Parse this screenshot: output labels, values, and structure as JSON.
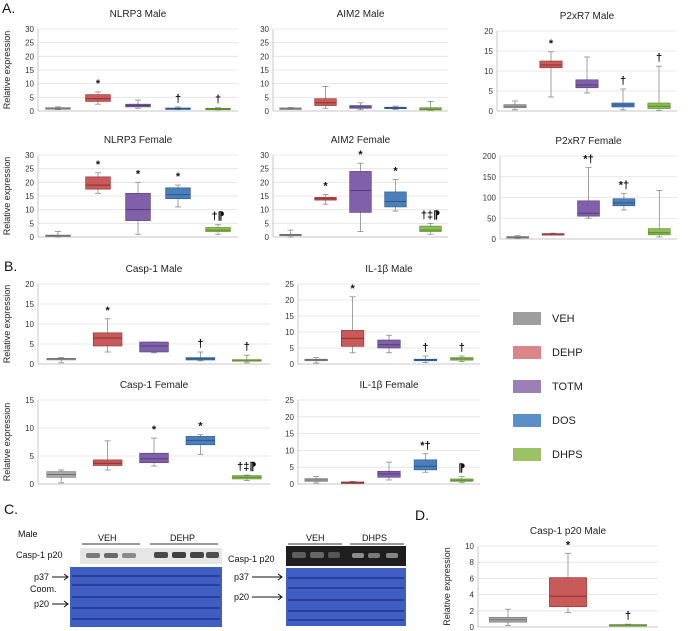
{
  "panel_labels": {
    "a": "A.",
    "b": "B.",
    "c": "C.",
    "d": "D."
  },
  "legend": [
    {
      "name": "VEH",
      "color": "#9e9e9e"
    },
    {
      "name": "DEHP",
      "color": "#d9858a"
    },
    {
      "name": "TOTM",
      "color": "#9b7fb7"
    },
    {
      "name": "DOS",
      "color": "#5b8fc7"
    },
    {
      "name": "DHPS",
      "color": "#9dc266"
    }
  ],
  "series_colors": {
    "VEH": {
      "fill": "#a8a8a8",
      "median": "#6f6f6f"
    },
    "DEHP": {
      "fill": "#c85a5a",
      "median": "#8e2e2e"
    },
    "TOTM": {
      "fill": "#8060a8",
      "median": "#553c7c"
    },
    "DOS": {
      "fill": "#4a7fbc",
      "median": "#2b5787"
    },
    "DHPS": {
      "fill": "#8bbd50",
      "median": "#5b8a28"
    }
  },
  "western": {
    "sex_label": "Male",
    "left": {
      "groups": [
        "VEH",
        "DEHP"
      ],
      "band_label": "Casp-1 p20",
      "markers": [
        "p37",
        "Coom.",
        "p20"
      ]
    },
    "right": {
      "groups": [
        "VEH",
        "DHPS"
      ],
      "band_label": "Casp-1 p20",
      "markers": [
        "p37",
        "p20"
      ]
    }
  },
  "chart_data": [
    {
      "type": "box",
      "title": "NLRP3 Male",
      "ylabel": "Relative expression",
      "ylim": [
        0,
        30
      ],
      "yticks": [
        0,
        5,
        10,
        15,
        20,
        25,
        30
      ],
      "categories": [
        "VEH",
        "DEHP",
        "TOTM",
        "DOS",
        "DHPS"
      ],
      "boxes": [
        [
          0.5,
          0.8,
          1,
          1.2,
          1.5
        ],
        [
          2.5,
          3.5,
          4.5,
          6,
          7
        ],
        [
          1,
          1.5,
          2,
          2.5,
          4
        ],
        [
          0.5,
          0.7,
          0.9,
          1.1,
          1.5
        ],
        [
          0.4,
          0.6,
          0.8,
          1,
          1.2
        ]
      ],
      "annotations": [
        "",
        "*",
        "",
        "†",
        "†"
      ]
    },
    {
      "type": "box",
      "title": "AIM2 Male",
      "ylabel": "",
      "ylim": [
        0,
        30
      ],
      "yticks": [
        0,
        5,
        10,
        15,
        20,
        25,
        30
      ],
      "categories": [
        "VEH",
        "DEHP",
        "TOTM",
        "DOS",
        "DHPS"
      ],
      "boxes": [
        [
          0.6,
          0.8,
          1,
          1.1,
          1.3
        ],
        [
          1,
          2,
          3,
          4.5,
          9
        ],
        [
          0.5,
          1,
          1.5,
          2,
          3
        ],
        [
          0.6,
          0.9,
          1.1,
          1.4,
          1.8
        ],
        [
          0.2,
          0.4,
          0.7,
          1.2,
          3.5
        ]
      ],
      "annotations": [
        "",
        "",
        "",
        "",
        ""
      ]
    },
    {
      "type": "box",
      "title": "P2xR7 Male",
      "ylabel": "",
      "ylim": [
        0,
        20
      ],
      "yticks": [
        0,
        5,
        10,
        15,
        20
      ],
      "categories": [
        "VEH",
        "DEHP",
        "TOTM",
        "DOS",
        "DHPS"
      ],
      "boxes": [
        [
          0.3,
          0.8,
          1.2,
          1.6,
          2.5
        ],
        [
          3.5,
          10.8,
          11.5,
          12.5,
          14.8
        ],
        [
          4.5,
          5.8,
          6.5,
          7.8,
          13.5
        ],
        [
          0.3,
          1,
          1.5,
          2,
          5.5
        ],
        [
          0.1,
          0.6,
          1.2,
          2,
          11.2
        ]
      ],
      "annotations": [
        "",
        "*",
        "",
        "†",
        "†"
      ]
    },
    {
      "type": "box",
      "title": "NLRP3 Female",
      "ylabel": "Relative expression",
      "ylim": [
        0,
        30
      ],
      "yticks": [
        0,
        5,
        10,
        15,
        20,
        25,
        30
      ],
      "categories": [
        "VEH",
        "DEHP",
        "TOTM",
        "DOS",
        "DHPS"
      ],
      "boxes": [
        [
          0,
          0.2,
          0.5,
          0.7,
          2
        ],
        [
          16,
          17.5,
          19,
          22,
          23.5
        ],
        [
          1,
          6,
          10,
          16,
          20
        ],
        [
          11,
          14,
          15.5,
          18,
          19
        ],
        [
          1,
          2,
          2.5,
          3.5,
          4.5
        ]
      ],
      "annotations": [
        "",
        "*",
        "*",
        "*",
        "†⁋"
      ]
    },
    {
      "type": "box",
      "title": "AIM2 Female",
      "ylabel": "",
      "ylim": [
        0,
        30
      ],
      "yticks": [
        0,
        5,
        10,
        15,
        20,
        25,
        30
      ],
      "categories": [
        "VEH",
        "DEHP",
        "TOTM",
        "DOS",
        "DHPS"
      ],
      "boxes": [
        [
          0,
          0.5,
          0.8,
          1,
          2.5
        ],
        [
          12,
          13.5,
          14,
          14.5,
          15.5
        ],
        [
          2,
          9,
          17,
          24,
          27
        ],
        [
          9.5,
          11,
          13,
          16.5,
          21
        ],
        [
          1,
          2,
          2.5,
          4,
          5
        ]
      ],
      "annotations": [
        "",
        "*",
        "*",
        "*",
        "†‡⁋"
      ]
    },
    {
      "type": "box",
      "title": "P2xR7 Female",
      "ylabel": "",
      "ylim": [
        0,
        200
      ],
      "yticks": [
        0,
        50,
        100,
        150,
        200
      ],
      "categories": [
        "VEH",
        "DEHP",
        "TOTM",
        "DOS",
        "DHPS"
      ],
      "boxes": [
        [
          1,
          3,
          4,
          6,
          8
        ],
        [
          10,
          11,
          12,
          13,
          14
        ],
        [
          50,
          55,
          62,
          92,
          172
        ],
        [
          70,
          80,
          87,
          97,
          110
        ],
        [
          5,
          10,
          15,
          25,
          117
        ]
      ],
      "annotations": [
        "",
        "",
        "*†",
        "*†",
        ""
      ]
    },
    {
      "type": "box",
      "title": "Casp-1 Male",
      "ylabel": "Relative expression",
      "ylim": [
        0,
        20
      ],
      "yticks": [
        0,
        5,
        10,
        15,
        20
      ],
      "categories": [
        "VEH",
        "DEHP",
        "TOTM",
        "DOS",
        "DHPS"
      ],
      "boxes": [
        [
          0.3,
          1.2,
          1.3,
          1.4,
          1.6
        ],
        [
          3,
          4.5,
          6.5,
          7.8,
          11.3
        ],
        [
          2.8,
          3,
          4.5,
          5.5,
          5.5
        ],
        [
          0.8,
          1,
          1.3,
          1.6,
          3
        ],
        [
          0.3,
          0.7,
          0.8,
          1.1,
          2.2
        ]
      ],
      "annotations": [
        "",
        "*",
        "",
        "†",
        "†"
      ]
    },
    {
      "type": "box",
      "title": "IL-1β Male",
      "ylabel": "",
      "ylim": [
        0,
        25
      ],
      "yticks": [
        0,
        5,
        10,
        15,
        20,
        25
      ],
      "categories": [
        "VEH",
        "DEHP",
        "TOTM",
        "DOS",
        "DHPS"
      ],
      "boxes": [
        [
          0.3,
          1,
          1.3,
          1.5,
          2
        ],
        [
          3.5,
          5.5,
          8,
          10.5,
          21
        ],
        [
          3.5,
          5,
          6,
          7.5,
          9
        ],
        [
          0.5,
          1,
          1.3,
          1.5,
          2.5
        ],
        [
          0.8,
          1.2,
          1.6,
          2,
          2.5
        ]
      ],
      "annotations": [
        "",
        "*",
        "",
        "†",
        "†"
      ]
    },
    {
      "type": "box",
      "title": "Casp-1 Female",
      "ylabel": "Relative expression",
      "ylim": [
        0,
        15
      ],
      "yticks": [
        0,
        5,
        10,
        15
      ],
      "categories": [
        "VEH",
        "DEHP",
        "TOTM",
        "DOS",
        "DHPS"
      ],
      "boxes": [
        [
          0.2,
          1.2,
          1.7,
          2.2,
          2.5
        ],
        [
          2.5,
          3.3,
          3.7,
          4.3,
          7.7
        ],
        [
          3.2,
          3.8,
          4.5,
          5.5,
          8.2
        ],
        [
          5.3,
          7,
          7.8,
          8.5,
          8.8
        ],
        [
          0.6,
          0.9,
          1.2,
          1.5,
          1.6
        ]
      ],
      "annotations": [
        "",
        "",
        "*",
        "*",
        "†‡⁋"
      ]
    },
    {
      "type": "box",
      "title": "IL-1β Female",
      "ylabel": "",
      "ylim": [
        0,
        25
      ],
      "yticks": [
        0,
        5,
        10,
        15,
        20,
        25
      ],
      "categories": [
        "VEH",
        "DEHP",
        "TOTM",
        "DOS",
        "DHPS"
      ],
      "boxes": [
        [
          0.3,
          0.8,
          1.2,
          1.6,
          2.2
        ],
        [
          0.2,
          0.4,
          0.5,
          0.6,
          0.8
        ],
        [
          1.2,
          2,
          3,
          3.8,
          6.5
        ],
        [
          3.5,
          4.2,
          5.3,
          7.2,
          9
        ],
        [
          0.5,
          0.8,
          1.1,
          1.5,
          2.2
        ]
      ],
      "annotations": [
        "",
        "",
        "",
        "*†",
        "⁋"
      ]
    },
    {
      "type": "box",
      "title": "Casp-1 p20 Male",
      "ylabel": "Relative expression",
      "ylim": [
        0,
        10
      ],
      "yticks": [
        0,
        2,
        4,
        6,
        8,
        10
      ],
      "categories": [
        "VEH",
        "DEHP",
        "DHPS"
      ],
      "boxes": [
        [
          0.2,
          0.6,
          0.9,
          1.2,
          2.2
        ],
        [
          1.8,
          2.5,
          3.8,
          6.1,
          9.1
        ],
        [
          0.15,
          0.2,
          0.25,
          0.3,
          0.35
        ]
      ],
      "annotations": [
        "",
        "*",
        "†"
      ]
    }
  ]
}
